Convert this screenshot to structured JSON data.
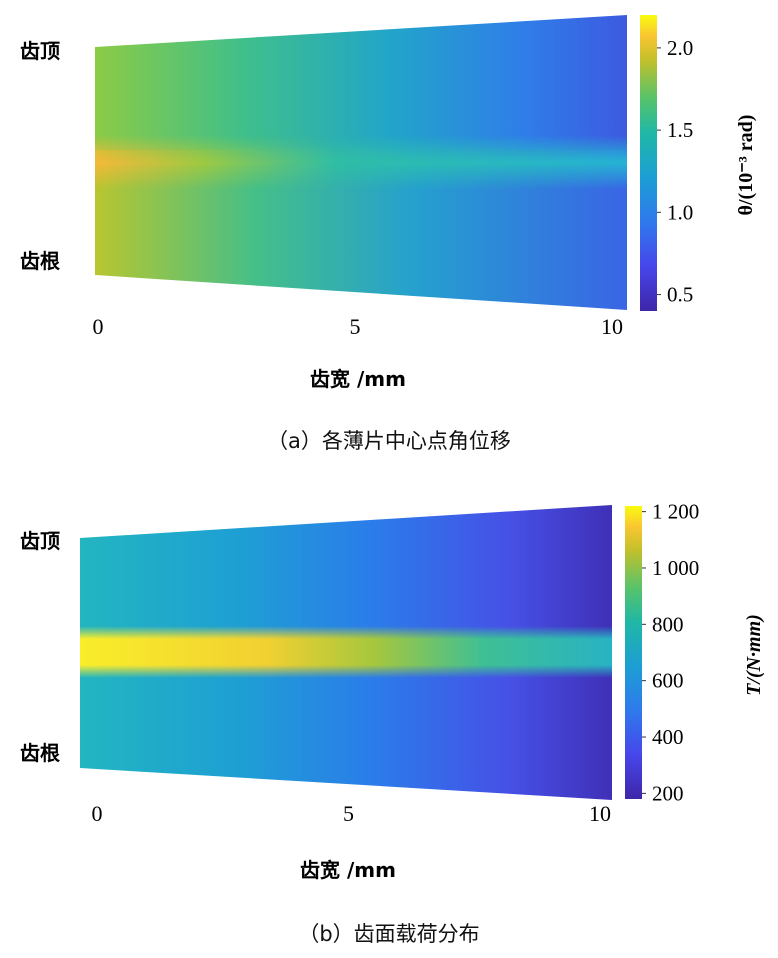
{
  "chart_data": [
    {
      "type": "heatmap",
      "caption": "（a）各薄片中心点角位移",
      "xlabel": "齿宽 /mm",
      "x_ticks": [
        0,
        5,
        10
      ],
      "xlim": [
        0,
        10
      ],
      "y_top_label": "齿顶",
      "y_bottom_label": "齿根",
      "colorbar": {
        "label": "θ/(10⁻³ rad)",
        "range": [
          0.4,
          2.2
        ],
        "ticks": [
          0.5,
          1.0,
          1.5,
          2.0
        ],
        "tick_labels": [
          "0.5",
          "1.0",
          "1.5",
          "2.0"
        ],
        "colormap": "parula"
      },
      "band_profile": {
        "x": [
          0,
          2.5,
          5,
          7.5,
          10
        ],
        "center_band": [
          2.0,
          1.6,
          1.3,
          1.1,
          1.0
        ],
        "outer_region": [
          1.8,
          1.45,
          1.1,
          0.8,
          0.55
        ]
      }
    },
    {
      "type": "heatmap",
      "caption": "（b）齿面载荷分布",
      "xlabel": "齿宽 /mm",
      "x_ticks": [
        0,
        5,
        10
      ],
      "xlim": [
        0,
        10
      ],
      "y_top_label": "齿顶",
      "y_bottom_label": "齿根",
      "colorbar": {
        "label": "T/(N·mm)",
        "range": [
          180,
          1220
        ],
        "ticks": [
          200,
          400,
          600,
          800,
          1000,
          1200
        ],
        "tick_labels": [
          "200",
          "400",
          "600",
          "800",
          "1 000",
          "1 200"
        ],
        "colormap": "parula"
      },
      "band_profile": {
        "x": [
          0,
          2.5,
          5,
          7.5,
          10
        ],
        "center_band": [
          1150,
          1080,
          870,
          700,
          640
        ],
        "outer_region": [
          650,
          520,
          420,
          320,
          230
        ]
      }
    }
  ]
}
